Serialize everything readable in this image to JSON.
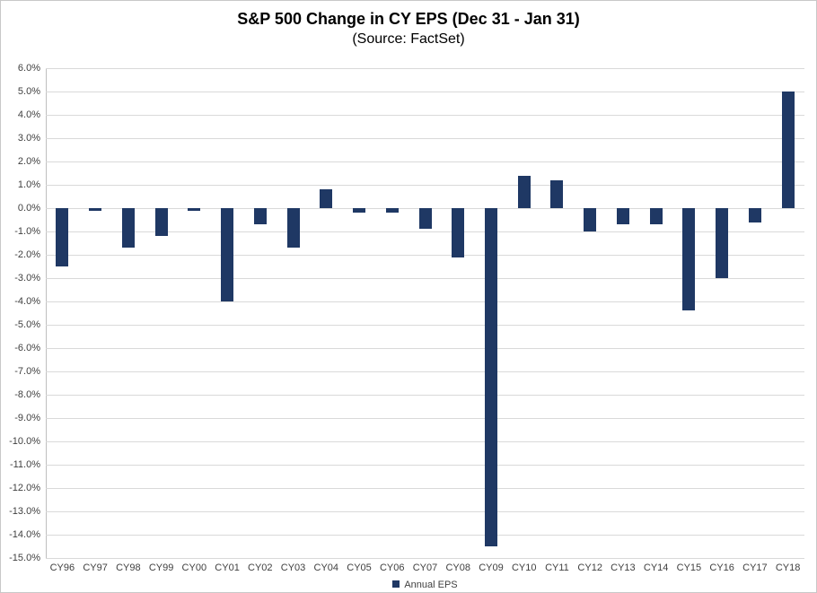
{
  "chart_data": {
    "type": "bar",
    "title": "S&P 500 Change in CY EPS (Dec 31 - Jan 31)",
    "subtitle": "(Source: FactSet)",
    "categories": [
      "CY96",
      "CY97",
      "CY98",
      "CY99",
      "CY00",
      "CY01",
      "CY02",
      "CY03",
      "CY04",
      "CY05",
      "CY06",
      "CY07",
      "CY08",
      "CY09",
      "CY10",
      "CY11",
      "CY12",
      "CY13",
      "CY14",
      "CY15",
      "CY16",
      "CY17",
      "CY18"
    ],
    "series": [
      {
        "name": "Annual EPS",
        "values": [
          -2.5,
          -0.1,
          -1.7,
          -1.2,
          -0.1,
          -4.0,
          -0.7,
          -1.7,
          0.8,
          -0.2,
          -0.2,
          -0.9,
          -2.1,
          -14.5,
          1.4,
          1.2,
          -1.0,
          -0.7,
          -0.7,
          -4.4,
          -3.0,
          -0.6,
          5.0
        ]
      }
    ],
    "xlabel": "",
    "ylabel": "",
    "ylim": [
      -15,
      6
    ],
    "ytick_step": 1,
    "ytick_suffix": "%",
    "grid": true,
    "legend_position": "bottom",
    "colors": {
      "bar": "#1f3864",
      "gridline": "#d9d9d9",
      "axis_line": "#bfbfbf",
      "tick_text": "#3f3f3f",
      "title_text": "#000000"
    }
  }
}
